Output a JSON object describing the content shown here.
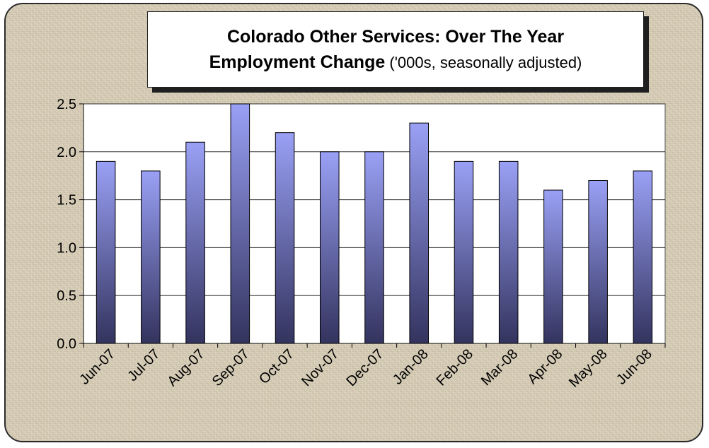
{
  "title": {
    "line1": "Colorado Other Services: Over The Year",
    "line2_bold": "Employment Change",
    "line2_normal": " ('000s, seasonally adjusted)"
  },
  "colors": {
    "bar_top": "#9aa0f5",
    "bar_bottom": "#33335e",
    "plot_bg": "#ffffff",
    "frame_bg": "#d8ceb8"
  },
  "chart_data": {
    "type": "bar",
    "categories": [
      "Jun-07",
      "Jul-07",
      "Aug-07",
      "Sep-07",
      "Oct-07",
      "Nov-07",
      "Dec-07",
      "Jan-08",
      "Feb-08",
      "Mar-08",
      "Apr-08",
      "May-08",
      "Jun-08"
    ],
    "values": [
      1.9,
      1.8,
      2.1,
      2.5,
      2.2,
      2.0,
      2.0,
      2.3,
      1.9,
      1.9,
      1.6,
      1.7,
      1.8
    ],
    "title": "Colorado Other Services: Over The Year Employment Change ('000s, seasonally adjusted)",
    "xlabel": "",
    "ylabel": "",
    "ylim": [
      0,
      2.5
    ],
    "yticks": [
      "0.0",
      "0.5",
      "1.0",
      "1.5",
      "2.0",
      "2.5"
    ],
    "grid": true,
    "legend": "none"
  }
}
